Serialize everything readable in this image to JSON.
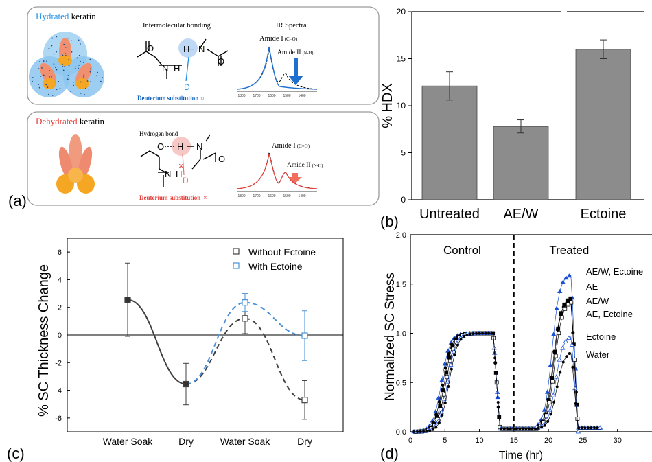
{
  "panel_letters": [
    "(a)",
    "(b)",
    "(c)",
    "(d)"
  ],
  "schematic": {
    "top": {
      "title_colored": "Hydrated",
      "title_rest": " keratin",
      "title_color": "#1f8fe6",
      "bonding_title": "Intermolecular bonding",
      "spectra_title": "IR Spectra",
      "amide1": "Amide I",
      "amide1_sub": "(C=O)",
      "amide2": "Amide II",
      "amide2_sub": "(N-H)",
      "d_label": "D",
      "atom_o": "O",
      "atom_n": "N",
      "atom_h": "H",
      "deuterium": "Deuterium substitution",
      "deuterium_mark": "○",
      "accent": "#1565c0",
      "spectrum_ticks": [
        "1800",
        "1700",
        "1600",
        "1500",
        "1400"
      ],
      "wavenumber_label": "Wavenumber (cm⁻¹)"
    },
    "bottom": {
      "title_colored": "Dehydrated",
      "title_rest": " keratin",
      "title_color": "#e53935",
      "hbond_title": "Hydrogen bond",
      "amide1": "Amide I",
      "amide1_sub": "(C=O)",
      "amide2": "Amide II",
      "amide2_sub": "(N-H)",
      "d_label": "D",
      "atom_o": "O",
      "atom_n": "N",
      "atom_h": "H",
      "deuterium": "Deuterium substitution",
      "deuterium_mark": "×",
      "accent": "#e53935",
      "spectrum_ticks": [
        "1800",
        "1700",
        "1600",
        "1500",
        "1400"
      ],
      "wavenumber_label": "Wavenumber (cm⁻¹)"
    }
  },
  "chart_data": [
    {
      "panel": "(b)",
      "type": "bar",
      "categories": [
        "Untreated",
        "AE/W",
        "Ectoine"
      ],
      "values": [
        12.1,
        7.8,
        16.0
      ],
      "errors": [
        1.5,
        0.7,
        1.0
      ],
      "ylabel": "% HDX",
      "ylim": [
        0,
        20
      ],
      "yticks": [
        0,
        5,
        10,
        15,
        20
      ],
      "bar_color": "#8c8c8c",
      "axis_break": "top axis"
    },
    {
      "panel": "(c)",
      "type": "line",
      "categories": [
        "Water Soak",
        "Dry",
        "Water Soak",
        "Dry"
      ],
      "ylabel": "% SC Thickness Change",
      "ylim": [
        -7,
        7
      ],
      "yticks": [
        -6,
        -4,
        -2,
        0,
        2,
        4,
        6
      ],
      "zero_line": true,
      "legend_position": "top-right",
      "series": [
        {
          "name": "Without Ectoine",
          "color": "#404040",
          "values": [
            2.55,
            -3.55,
            1.2,
            -4.7
          ],
          "errors": [
            2.65,
            1.5,
            1.1,
            1.4
          ]
        },
        {
          "name": "With Ectoine",
          "color": "#4a8fd8",
          "values": [
            2.55,
            -3.55,
            2.35,
            -0.05
          ],
          "errors": [
            2.65,
            1.5,
            0.65,
            1.8
          ]
        }
      ]
    },
    {
      "panel": "(d)",
      "type": "scatter",
      "xlabel": "Time (hr)",
      "ylabel": "Normalized SC Stress",
      "xlim": [
        0,
        35
      ],
      "ylim": [
        0,
        2.0
      ],
      "xticks": [
        0,
        5,
        10,
        15,
        20,
        25,
        30
      ],
      "yticks": [
        0.0,
        0.5,
        1.0,
        1.5,
        2.0
      ],
      "divider_x": 15,
      "region_labels": [
        "Control",
        "Treated"
      ],
      "series": [
        {
          "name": "AE/W, Ectoine",
          "color": "#1a4fd6",
          "marker": "triangle",
          "plateau": 1.6
        },
        {
          "name": "AE",
          "color": "#000000",
          "marker": "circle",
          "plateau": 1.34
        },
        {
          "name": "AE/W",
          "color": "#000000",
          "marker": "square",
          "plateau": 1.37
        },
        {
          "name": "AE, Ectoine",
          "color": "#000000",
          "marker": "square-open",
          "plateau": 1.33
        },
        {
          "name": "Ectoine",
          "color": "#1a4fd6",
          "marker": "triangle-open",
          "plateau": 0.98
        },
        {
          "name": "Water",
          "color": "#000000",
          "marker": "dot",
          "plateau": 0.82
        }
      ]
    }
  ]
}
